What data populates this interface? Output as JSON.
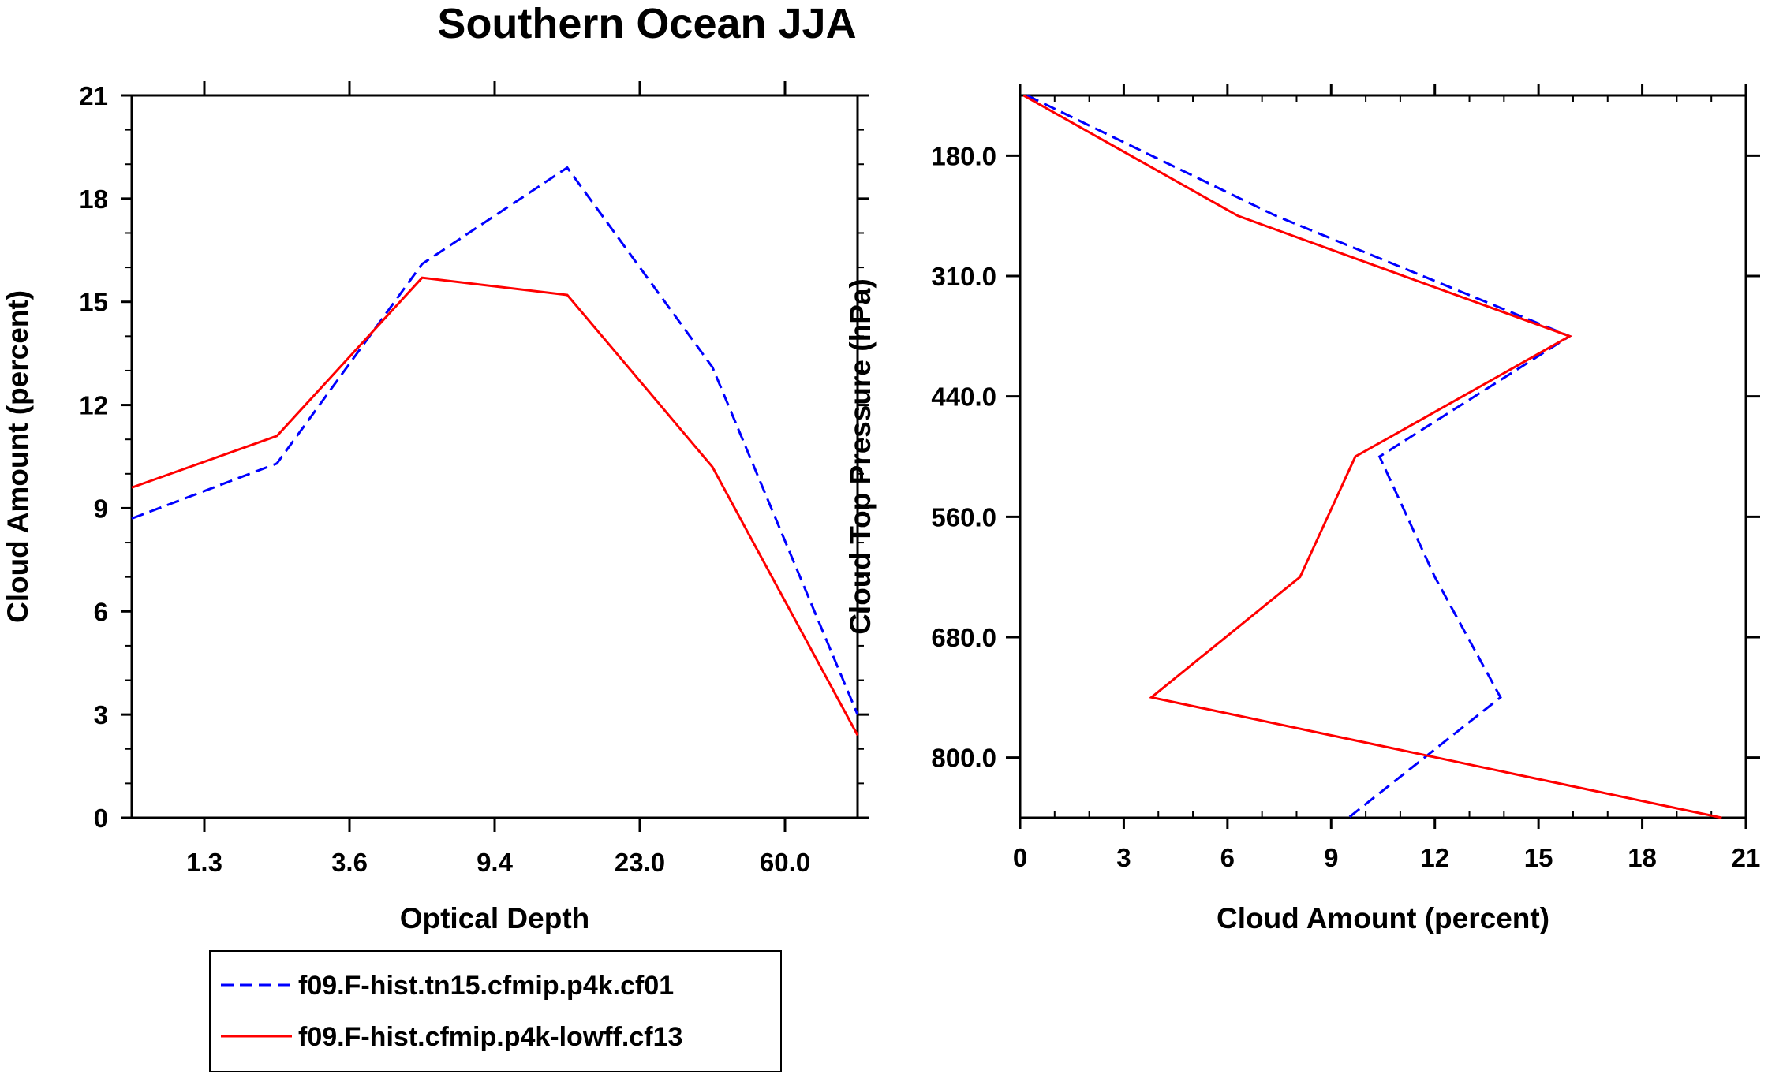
{
  "colors": {
    "series1": "#0000ff",
    "series2": "#ff0000",
    "axes": "#000000",
    "background": "#ffffff"
  },
  "chart_data": [
    {
      "type": "line",
      "title": "Southern Ocean JJA",
      "xlabel": "Optical Depth",
      "ylabel": "Cloud Amount (percent)",
      "x_tick_labels": [
        "1.3",
        "3.6",
        "9.4",
        "23.0",
        "60.0"
      ],
      "y_tick_labels": [
        "0",
        "3",
        "6",
        "9",
        "12",
        "15",
        "18",
        "21"
      ],
      "ylim": [
        0,
        21
      ],
      "series": [
        {
          "name": "f09.F-hist.tn15.cfmip.p4k.cf01",
          "style": "dashed",
          "x": [
            0,
            1,
            2,
            3,
            4,
            5
          ],
          "values": [
            8.7,
            10.3,
            16.1,
            18.9,
            13.1,
            3.0
          ]
        },
        {
          "name": "f09.F-hist.cfmip.p4k-lowff.cf13",
          "style": "solid",
          "x": [
            0,
            1,
            2,
            3,
            4,
            5
          ],
          "values": [
            9.6,
            11.1,
            15.7,
            15.2,
            10.2,
            2.4
          ]
        }
      ],
      "legend": "below"
    },
    {
      "type": "line",
      "xlabel": "Cloud Amount (percent)",
      "ylabel": "Cloud Top Pressure (hPa)",
      "x_tick_labels": [
        "0",
        "3",
        "6",
        "9",
        "12",
        "15",
        "18",
        "21"
      ],
      "xlim": [
        0,
        21
      ],
      "y_tick_labels": [
        "180.0",
        "310.0",
        "440.0",
        "560.0",
        "680.0",
        "800.0"
      ],
      "series": [
        {
          "name": "f09.F-hist.tn15.cfmip.p4k.cf01",
          "style": "dashed",
          "level": [
            0,
            1,
            2,
            3,
            4,
            5,
            6
          ],
          "values": [
            0.2,
            7.4,
            15.9,
            10.4,
            12.0,
            13.9,
            9.5
          ]
        },
        {
          "name": "f09.F-hist.cfmip.p4k-lowff.cf13",
          "style": "solid",
          "level": [
            0,
            1,
            2,
            3,
            4,
            5,
            6
          ],
          "values": [
            0.1,
            6.3,
            15.9,
            9.7,
            8.1,
            3.8,
            20.3
          ]
        }
      ]
    }
  ]
}
